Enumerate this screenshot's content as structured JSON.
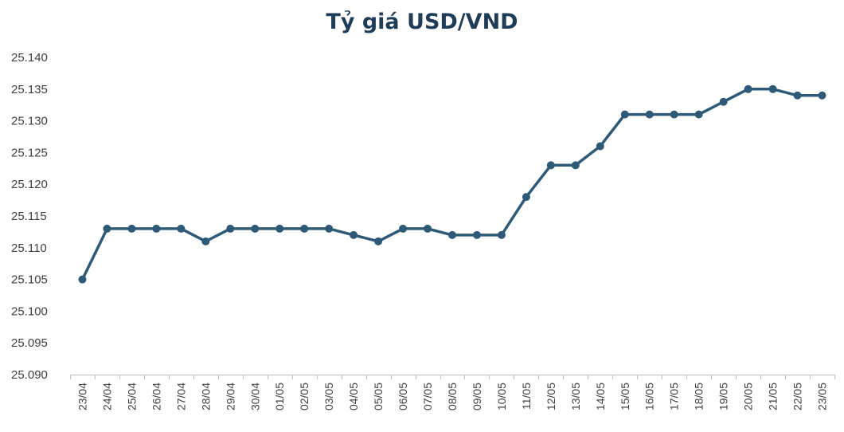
{
  "chart_data": {
    "type": "line",
    "title": "Tỷ giá USD/VND",
    "xlabel": "",
    "ylabel": "",
    "categories": [
      "23/04",
      "24/04",
      "25/04",
      "26/04",
      "27/04",
      "28/04",
      "29/04",
      "30/04",
      "01/05",
      "02/05",
      "03/05",
      "04/05",
      "05/05",
      "06/05",
      "07/05",
      "08/05",
      "09/05",
      "10/05",
      "11/05",
      "12/05",
      "13/05",
      "14/05",
      "15/05",
      "16/05",
      "17/05",
      "18/05",
      "19/05",
      "20/05",
      "21/05",
      "22/05",
      "23/05"
    ],
    "series": [
      {
        "values": [
          25105,
          25113,
          25113,
          25113,
          25113,
          25111,
          25113,
          25113,
          25113,
          25113,
          25113,
          25112,
          25111,
          25113,
          25113,
          25112,
          25112,
          25112,
          25118,
          25123,
          25123,
          25126,
          25131,
          25131,
          25131,
          25131,
          25133,
          25135,
          25135,
          25134,
          25134
        ],
        "color": "#2e5a78"
      }
    ],
    "ylim": [
      25090,
      25140
    ],
    "y_ticks": [
      25090,
      25095,
      25100,
      25105,
      25110,
      25115,
      25120,
      25125,
      25130,
      25135,
      25140
    ],
    "y_tick_labels": [
      "25.090",
      "25.095",
      "25.100",
      "25.105",
      "25.110",
      "25.115",
      "25.120",
      "25.125",
      "25.130",
      "25.135",
      "25.140"
    ],
    "grid": false,
    "legend": "none",
    "title_color": "#1f3d57",
    "axis_color": "#bfbfbf"
  }
}
